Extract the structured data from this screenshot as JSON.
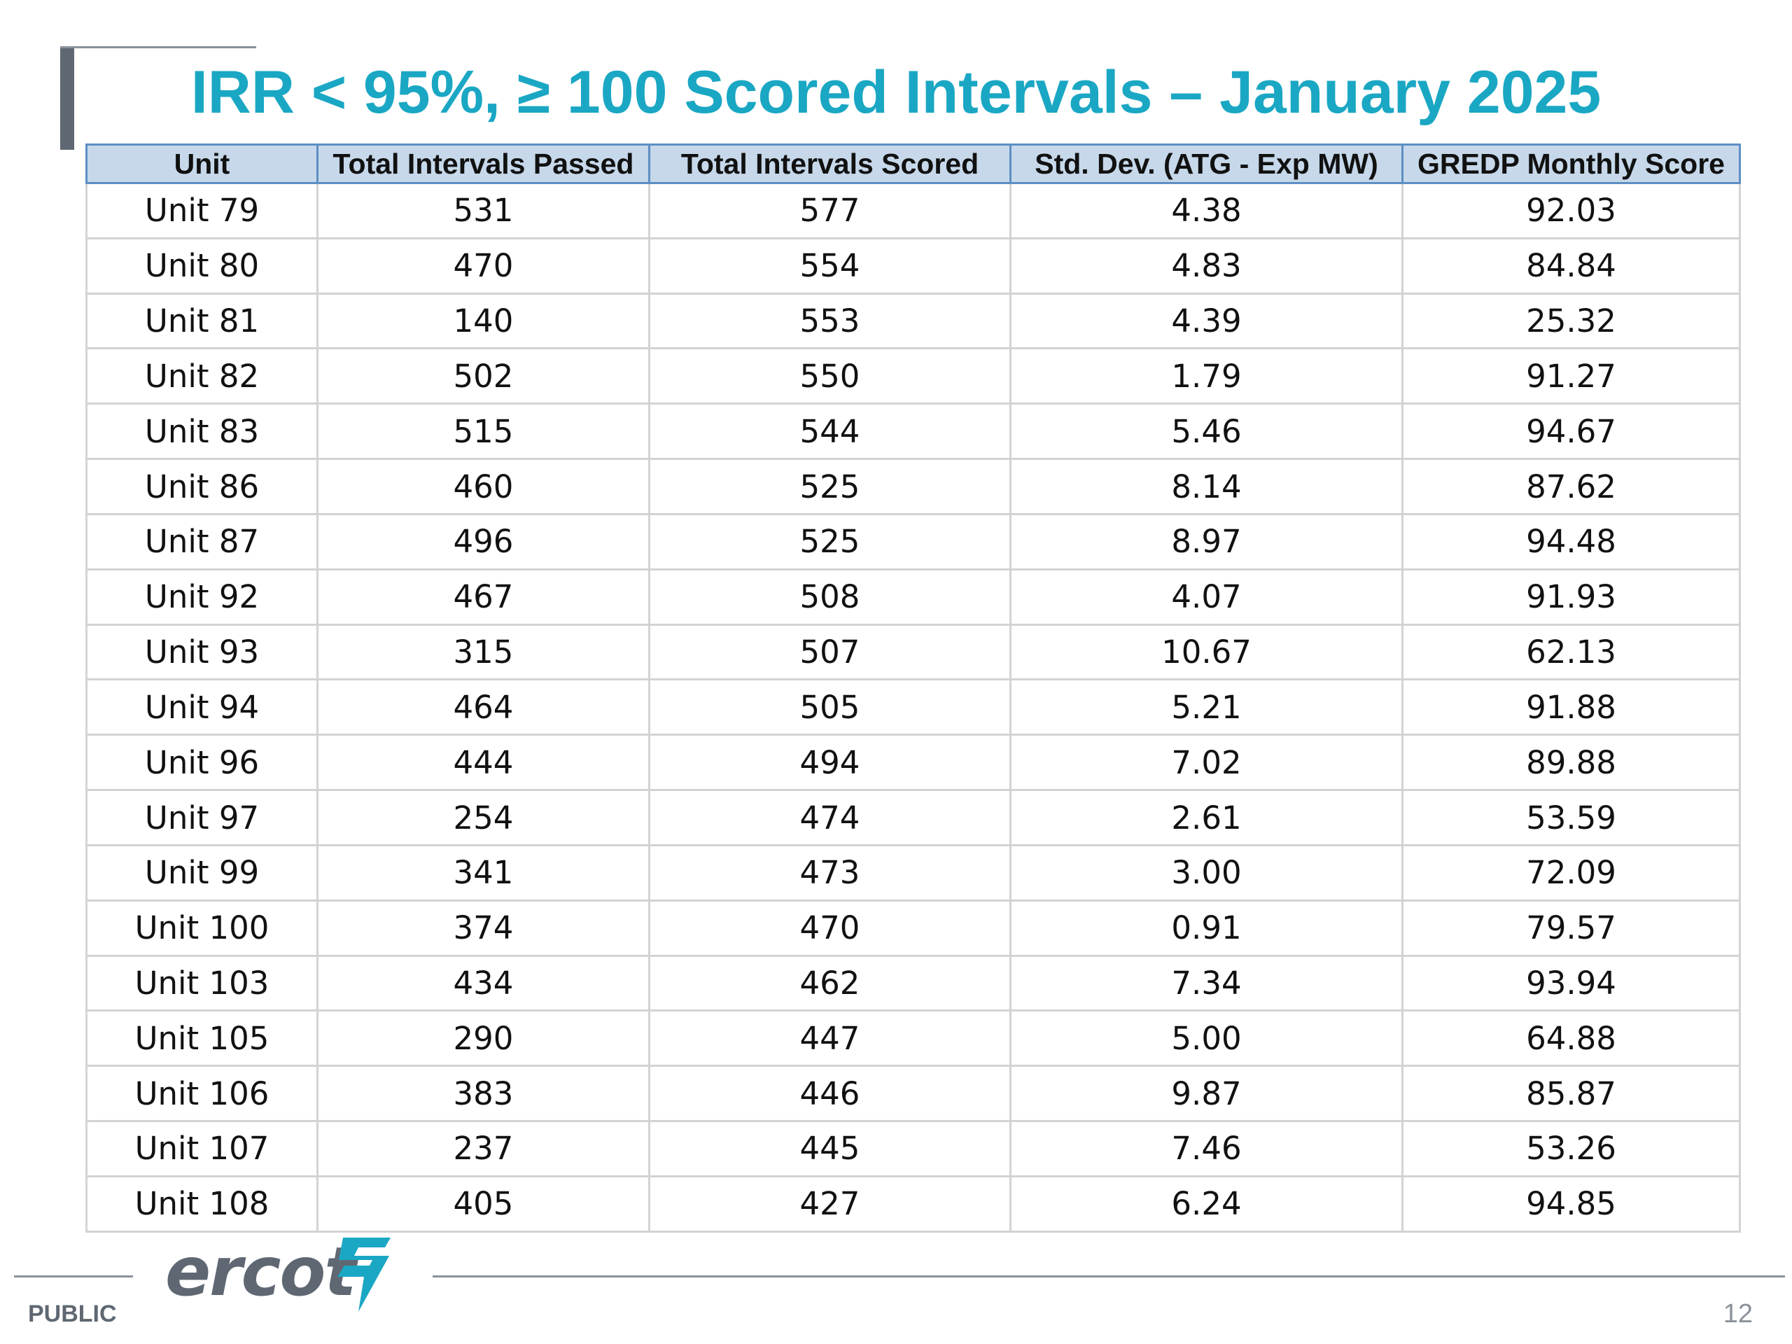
{
  "slide": {
    "title": "IRR < 95%, ≥ 100 Scored Intervals – January 2025",
    "classification": "PUBLIC",
    "page_number": "12",
    "logo_text": "ercot"
  },
  "table": {
    "columns": [
      "Unit",
      "Total Intervals Passed",
      "Total Intervals Scored",
      "Std. Dev. (ATG - Exp MW)",
      "GREDP Monthly Score"
    ],
    "rows": [
      [
        "Unit 79",
        "531",
        "577",
        "4.38",
        "92.03"
      ],
      [
        "Unit 80",
        "470",
        "554",
        "4.83",
        "84.84"
      ],
      [
        "Unit 81",
        "140",
        "553",
        "4.39",
        "25.32"
      ],
      [
        "Unit 82",
        "502",
        "550",
        "1.79",
        "91.27"
      ],
      [
        "Unit 83",
        "515",
        "544",
        "5.46",
        "94.67"
      ],
      [
        "Unit 86",
        "460",
        "525",
        "8.14",
        "87.62"
      ],
      [
        "Unit 87",
        "496",
        "525",
        "8.97",
        "94.48"
      ],
      [
        "Unit 92",
        "467",
        "508",
        "4.07",
        "91.93"
      ],
      [
        "Unit 93",
        "315",
        "507",
        "10.67",
        "62.13"
      ],
      [
        "Unit 94",
        "464",
        "505",
        "5.21",
        "91.88"
      ],
      [
        "Unit 96",
        "444",
        "494",
        "7.02",
        "89.88"
      ],
      [
        "Unit 97",
        "254",
        "474",
        "2.61",
        "53.59"
      ],
      [
        "Unit 99",
        "341",
        "473",
        "3.00",
        "72.09"
      ],
      [
        "Unit 100",
        "374",
        "470",
        "0.91",
        "79.57"
      ],
      [
        "Unit 103",
        "434",
        "462",
        "7.34",
        "93.94"
      ],
      [
        "Unit 105",
        "290",
        "447",
        "5.00",
        "64.88"
      ],
      [
        "Unit 106",
        "383",
        "446",
        "9.87",
        "85.87"
      ],
      [
        "Unit 107",
        "237",
        "445",
        "7.46",
        "53.26"
      ],
      [
        "Unit 108",
        "405",
        "427",
        "6.24",
        "94.85"
      ]
    ]
  },
  "colors": {
    "title": "#1aa7c4",
    "header_bg": "#c6d8ea",
    "header_border": "#5d8fc3",
    "logo": "#5f6872",
    "logo_bolt": "#1aa7c4"
  }
}
